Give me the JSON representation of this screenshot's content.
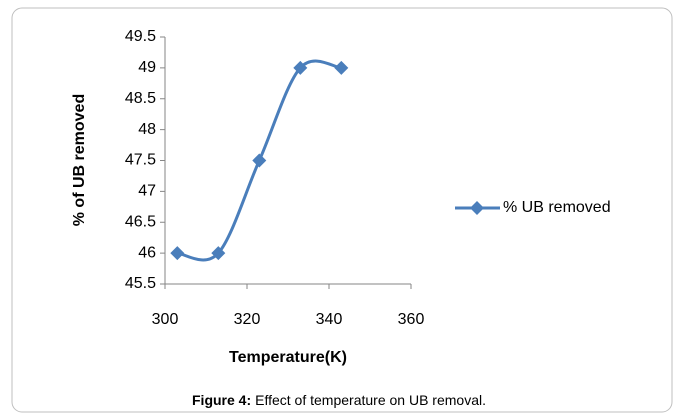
{
  "chart_data": {
    "type": "line",
    "x_label": "Temperature(K)",
    "y_label": "% of  UB removed",
    "caption_label": "Figure 4:",
    "caption_text": "Effect of temperature on UB removal.",
    "x": [
      303,
      313,
      323,
      333,
      343
    ],
    "series": [
      {
        "name": "% UB removed",
        "color": "#4a7ebb",
        "values": [
          46,
          46,
          47.5,
          49,
          49
        ]
      }
    ],
    "xlim": [
      300,
      360
    ],
    "xticks": [
      300,
      320,
      340,
      360
    ],
    "ylim": [
      45.5,
      49.5
    ],
    "yticks": [
      45.5,
      46,
      46.5,
      47,
      47.5,
      48,
      48.5,
      49,
      49.5
    ],
    "smooth": true,
    "grid": false,
    "legend": "right"
  }
}
